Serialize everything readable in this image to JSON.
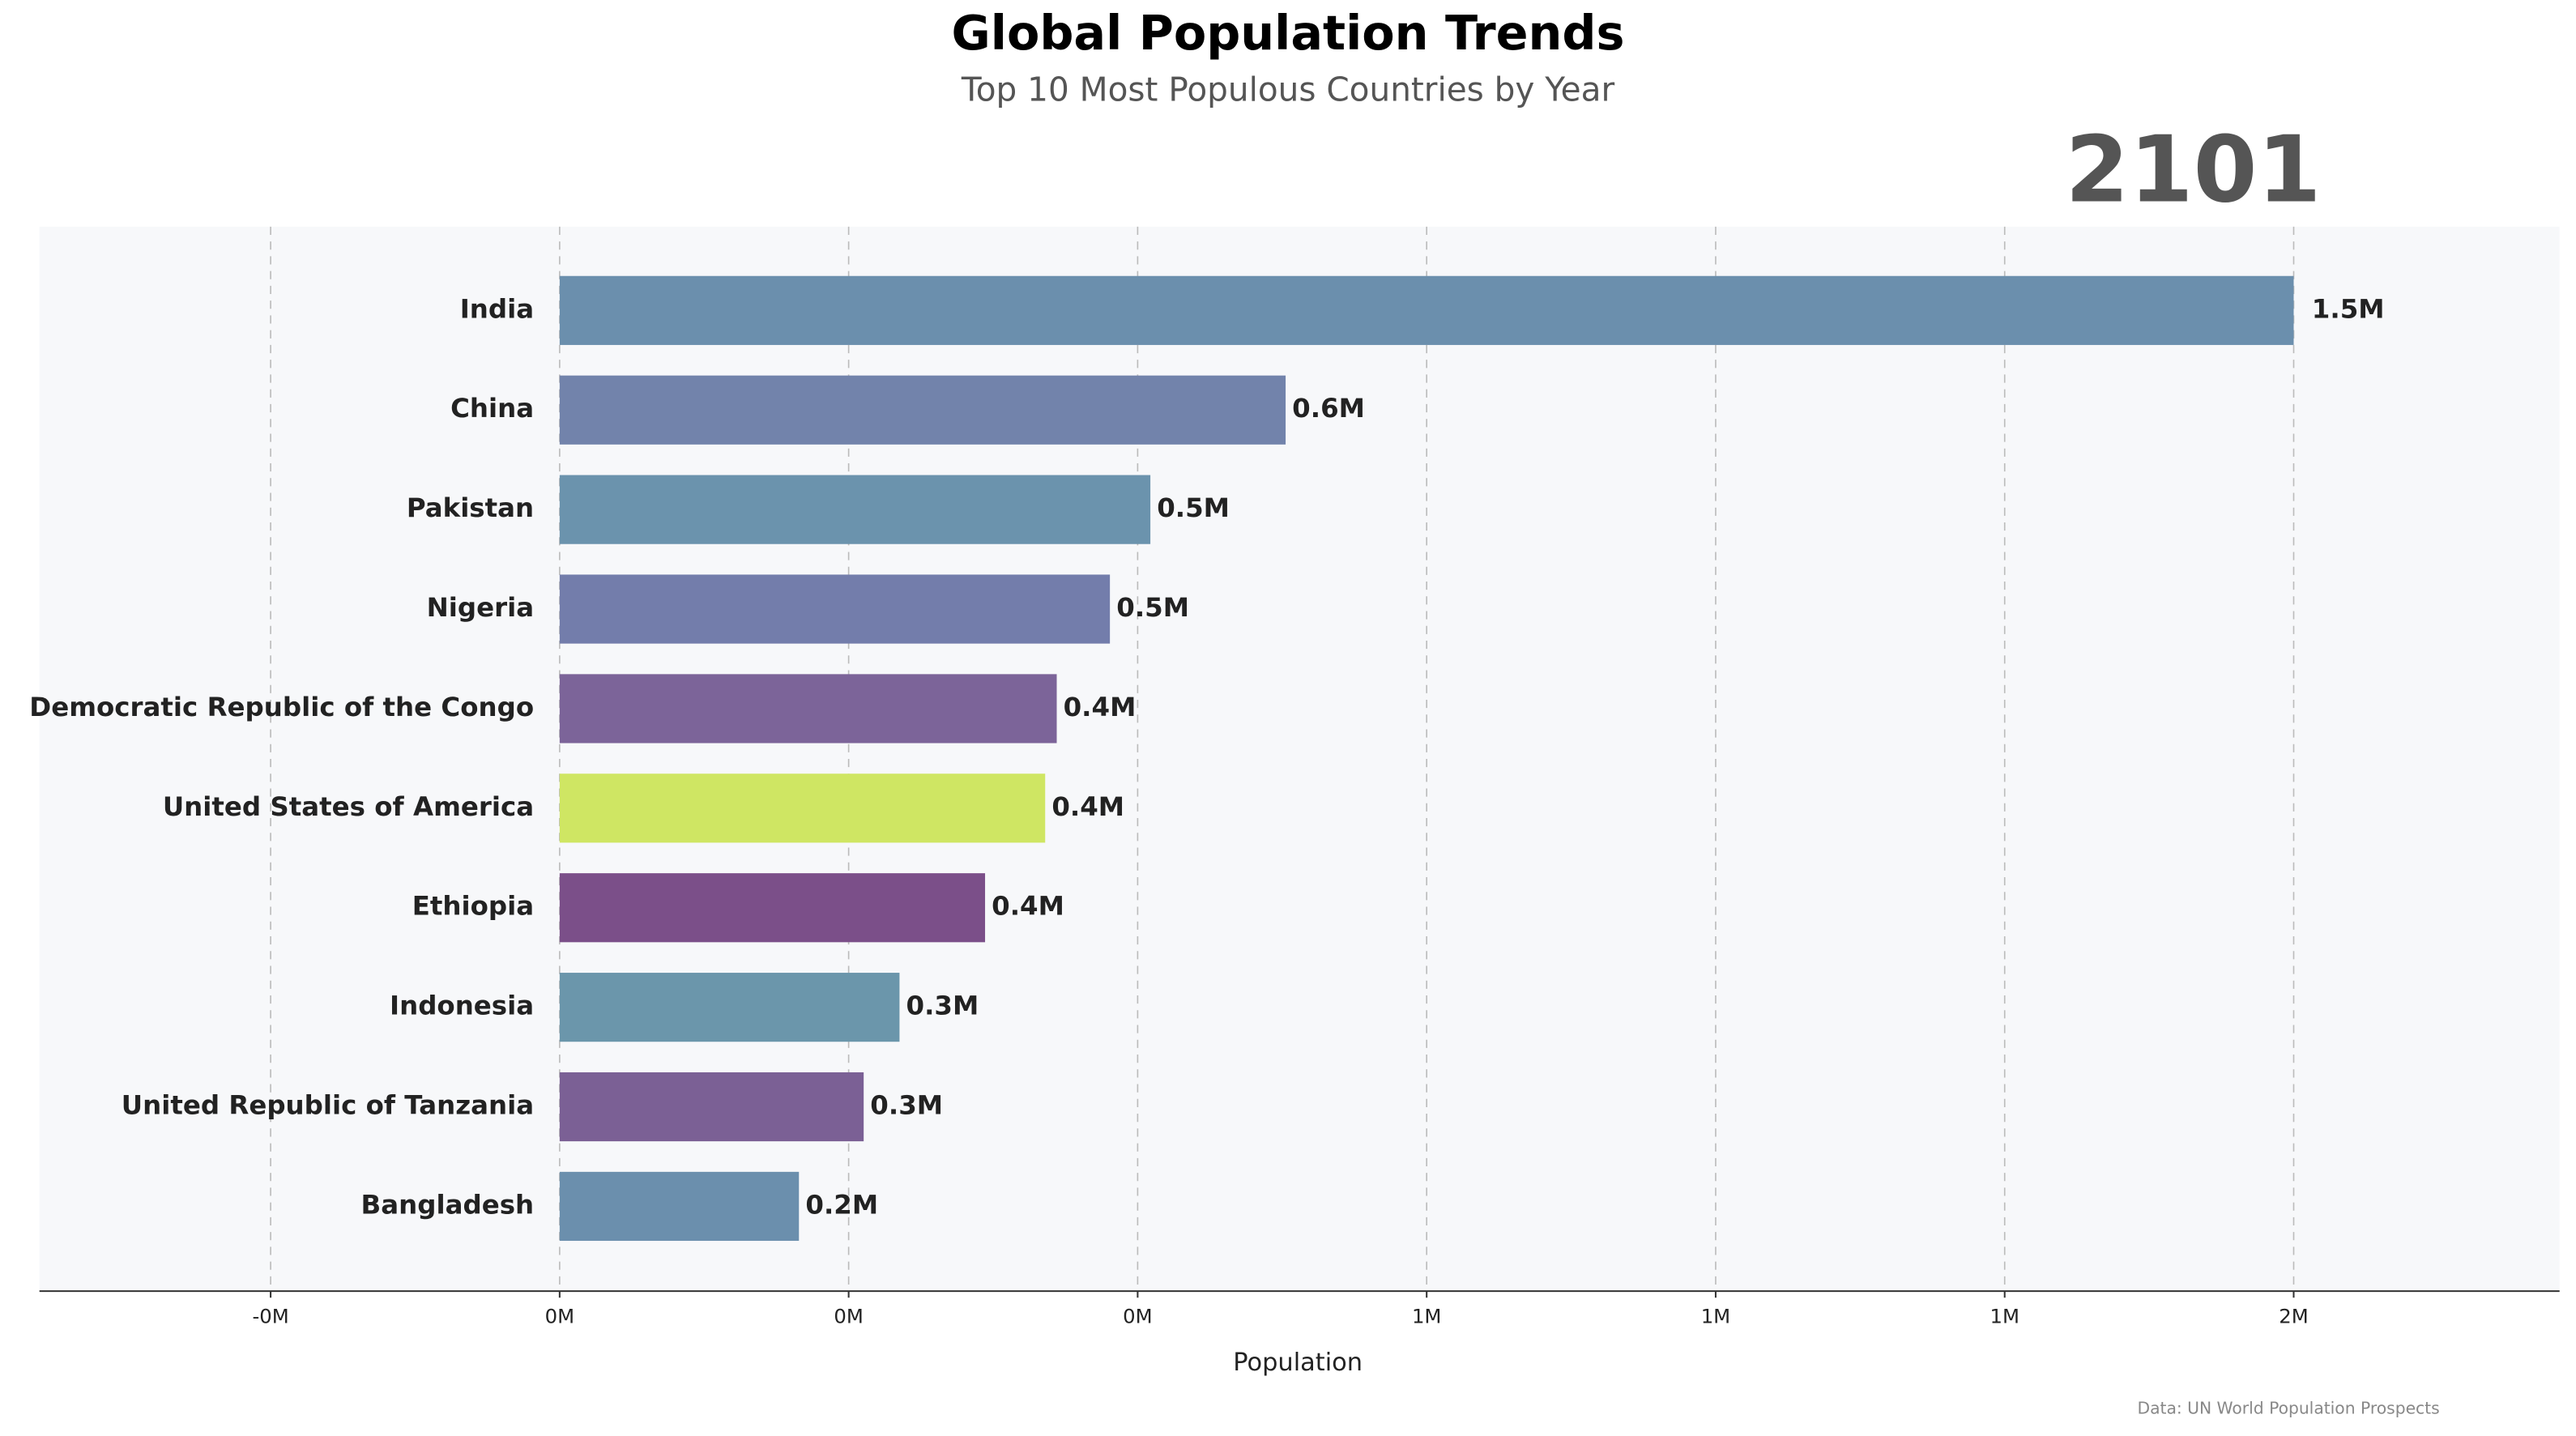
{
  "chart_data": {
    "type": "barh",
    "title": "Global Population Trends",
    "subtitle": "Top 10 Most Populous Countries by Year",
    "year": "2101",
    "xlabel": "Population",
    "source": "Data: UN World Population Prospects",
    "categories": [
      "India",
      "China",
      "Pakistan",
      "Nigeria",
      "Democratic Republic of the Congo",
      "United States of America",
      "Ethiopia",
      "Indonesia",
      "United Republic of Tanzania",
      "Bangladesh"
    ],
    "values": [
      1.5,
      0.628,
      0.511,
      0.476,
      0.43,
      0.42,
      0.368,
      0.294,
      0.263,
      0.207
    ],
    "value_labels": [
      "1.5M",
      "0.6M",
      "0.5M",
      "0.5M",
      "0.4M",
      "0.4M",
      "0.4M",
      "0.3M",
      "0.3M",
      "0.2M"
    ],
    "colors": [
      "#6b8fad",
      "#7283ab",
      "#6b93ad",
      "#737dab",
      "#7c6499",
      "#cfe663",
      "#7b4f89",
      "#6b96ab",
      "#7b6095",
      "#6b8fad"
    ],
    "xlim": [
      -0.45,
      1.73
    ],
    "xticks": [
      {
        "value": -0.25,
        "label": "-0M"
      },
      {
        "value": 0,
        "label": "0M"
      },
      {
        "value": 0.25,
        "label": "0M"
      },
      {
        "value": 0.5,
        "label": "0M"
      },
      {
        "value": 0.75,
        "label": "1M"
      },
      {
        "value": 1.0,
        "label": "1M"
      },
      {
        "value": 1.25,
        "label": "1M"
      },
      {
        "value": 1.5,
        "label": "2M"
      }
    ],
    "grid": true
  }
}
